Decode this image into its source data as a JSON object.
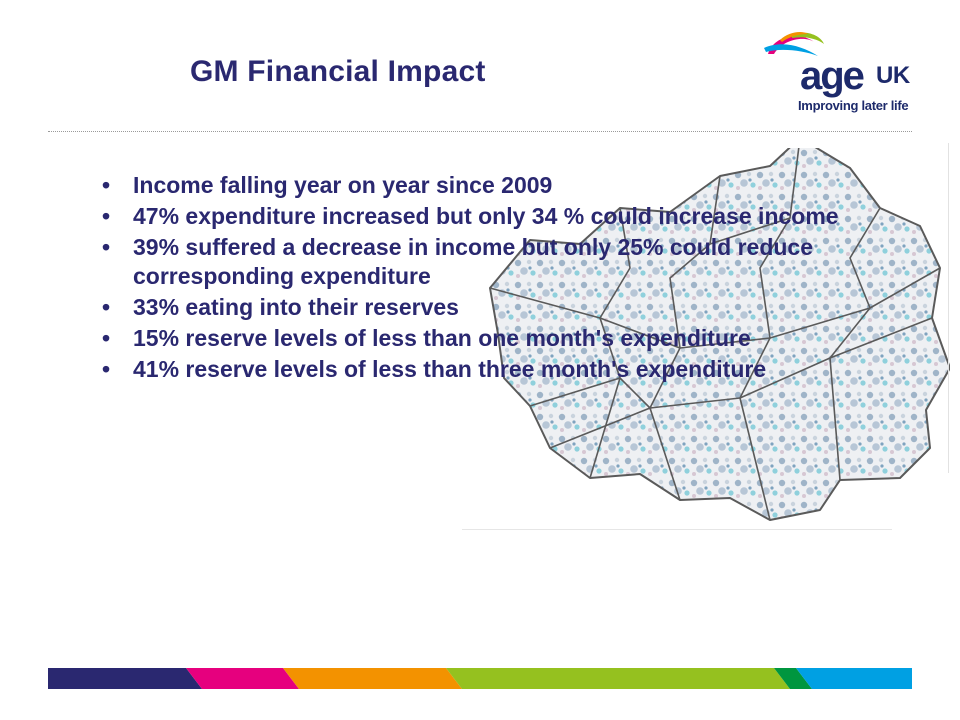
{
  "slide": {
    "title": "GM Financial Impact",
    "bullet_glyph": "•",
    "bullets": [
      "Income falling year on year since 2009",
      "47% expenditure increased but only 34 % could increase income",
      "39% suffered a decrease in income but only 25% could reduce  corresponding expenditure",
      "33% eating into their reserves",
      "15% reserve levels of less than one month's expenditure",
      "41% reserve levels of less than three month's expenditure"
    ]
  },
  "logo": {
    "word": "age",
    "suffix": "UK",
    "tagline": "Improving later life"
  },
  "colors": {
    "title": "#2a2870",
    "logo_navy": "#1d2a6b",
    "stripe": [
      "#2a2870",
      "#e6007e",
      "#f39200",
      "#95c11f",
      "#00a0e3"
    ],
    "map_fill": "#eef0f3",
    "map_border": "#5a5a5a"
  }
}
